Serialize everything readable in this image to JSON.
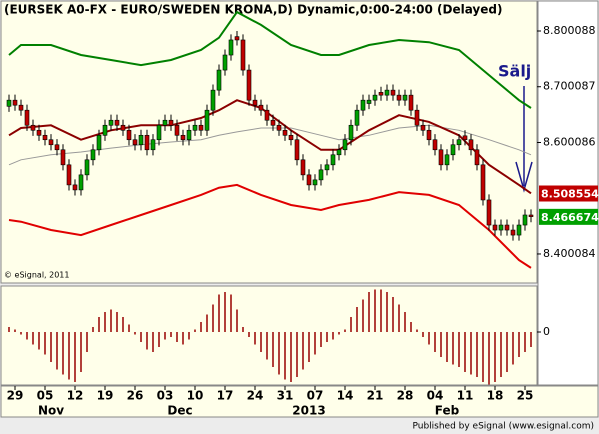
{
  "chart_data": {
    "type": "candlestick",
    "title": "(EURSEK A0-FX - EURO/SWEDEN KRONA,D) Dynamic,0:00-24:00 (Delayed)",
    "annotation": "Sälj",
    "copyright": "© eSignal, 2011",
    "footer": "Published by eSignal (www.esignal.com)",
    "ylim": [
      8.348,
      8.8557
    ],
    "yticks": [
      8.800088,
      8.700087,
      8.600086,
      8.400084
    ],
    "xlim": [
      -1.5,
      88
    ],
    "xticks": [
      {
        "value": 1,
        "label": "29"
      },
      {
        "value": 6,
        "label": "05"
      },
      {
        "value": 11,
        "label": "12"
      },
      {
        "value": 16,
        "label": "19"
      },
      {
        "value": 21,
        "label": "26"
      },
      {
        "value": 26,
        "label": "03"
      },
      {
        "value": 31,
        "label": "10"
      },
      {
        "value": 36,
        "label": "17"
      },
      {
        "value": 41,
        "label": "24"
      },
      {
        "value": 46,
        "label": "31"
      },
      {
        "value": 51,
        "label": "07"
      },
      {
        "value": 56,
        "label": "14"
      },
      {
        "value": 61,
        "label": "21"
      },
      {
        "value": 66,
        "label": "28"
      },
      {
        "value": 71,
        "label": "04"
      },
      {
        "value": 76,
        "label": "11"
      },
      {
        "value": 81,
        "label": "18"
      },
      {
        "value": 86,
        "label": "25"
      }
    ],
    "month_labels": [
      {
        "value": 7,
        "label": "Nov"
      },
      {
        "value": 28.5,
        "label": "Dec"
      },
      {
        "value": 50,
        "label": "2013"
      },
      {
        "value": 73,
        "label": "Feb"
      }
    ],
    "colors": {
      "up": "#00a000",
      "down": "#c00000"
    },
    "candles": {
      "open": [
        8.665,
        8.676,
        8.667,
        8.658,
        8.631,
        8.622,
        8.613,
        8.605,
        8.596,
        8.587,
        8.56,
        8.524,
        8.515,
        8.542,
        8.569,
        8.587,
        8.613,
        8.631,
        8.64,
        8.631,
        8.622,
        8.605,
        8.596,
        8.613,
        8.587,
        8.605,
        8.631,
        8.64,
        8.631,
        8.613,
        8.605,
        8.622,
        8.631,
        8.622,
        8.658,
        8.694,
        8.73,
        8.757,
        8.79,
        8.784,
        8.73,
        8.676,
        8.667,
        8.658,
        8.64,
        8.631,
        8.622,
        8.613,
        8.605,
        8.569,
        8.542,
        8.524,
        8.533,
        8.551,
        8.56,
        8.578,
        8.587,
        8.605,
        8.631,
        8.658,
        8.67,
        8.676,
        8.69,
        8.685,
        8.694,
        8.685,
        8.676,
        8.685,
        8.658,
        8.631,
        8.622,
        8.605,
        8.587,
        8.56,
        8.578,
        8.596,
        8.612,
        8.605,
        8.587,
        8.56,
        8.497,
        8.452,
        8.443,
        8.452,
        8.443,
        8.434,
        8.452,
        8.47
      ],
      "high": [
        8.686,
        8.686,
        8.677,
        8.668,
        8.641,
        8.632,
        8.623,
        8.615,
        8.606,
        8.597,
        8.57,
        8.534,
        8.552,
        8.579,
        8.597,
        8.623,
        8.641,
        8.65,
        8.65,
        8.641,
        8.632,
        8.615,
        8.623,
        8.623,
        8.615,
        8.641,
        8.65,
        8.65,
        8.641,
        8.623,
        8.632,
        8.641,
        8.641,
        8.668,
        8.704,
        8.74,
        8.767,
        8.794,
        8.8,
        8.794,
        8.74,
        8.686,
        8.677,
        8.668,
        8.65,
        8.641,
        8.632,
        8.623,
        8.615,
        8.579,
        8.552,
        8.543,
        8.561,
        8.57,
        8.588,
        8.597,
        8.615,
        8.641,
        8.668,
        8.686,
        8.686,
        8.695,
        8.7,
        8.704,
        8.704,
        8.695,
        8.695,
        8.695,
        8.668,
        8.641,
        8.632,
        8.615,
        8.597,
        8.588,
        8.606,
        8.615,
        8.622,
        8.615,
        8.597,
        8.57,
        8.507,
        8.462,
        8.462,
        8.462,
        8.453,
        8.462,
        8.48,
        8.48
      ],
      "low": [
        8.655,
        8.657,
        8.648,
        8.621,
        8.612,
        8.603,
        8.595,
        8.586,
        8.577,
        8.55,
        8.514,
        8.505,
        8.505,
        8.532,
        8.559,
        8.577,
        8.603,
        8.621,
        8.621,
        8.612,
        8.595,
        8.586,
        8.586,
        8.577,
        8.577,
        8.595,
        8.621,
        8.621,
        8.603,
        8.595,
        8.595,
        8.612,
        8.612,
        8.612,
        8.648,
        8.684,
        8.72,
        8.747,
        8.774,
        8.72,
        8.666,
        8.657,
        8.648,
        8.63,
        8.621,
        8.612,
        8.603,
        8.595,
        8.559,
        8.532,
        8.514,
        8.514,
        8.523,
        8.541,
        8.55,
        8.568,
        8.577,
        8.595,
        8.621,
        8.648,
        8.66,
        8.666,
        8.675,
        8.675,
        8.675,
        8.666,
        8.666,
        8.648,
        8.621,
        8.612,
        8.595,
        8.577,
        8.55,
        8.55,
        8.568,
        8.586,
        8.595,
        8.577,
        8.55,
        8.487,
        8.442,
        8.433,
        8.433,
        8.433,
        8.424,
        8.424,
        8.442,
        8.457
      ],
      "close": [
        8.676,
        8.667,
        8.658,
        8.631,
        8.622,
        8.613,
        8.605,
        8.596,
        8.587,
        8.56,
        8.524,
        8.515,
        8.542,
        8.569,
        8.587,
        8.613,
        8.631,
        8.64,
        8.631,
        8.622,
        8.605,
        8.596,
        8.613,
        8.587,
        8.605,
        8.631,
        8.64,
        8.631,
        8.613,
        8.605,
        8.622,
        8.631,
        8.622,
        8.658,
        8.694,
        8.73,
        8.757,
        8.784,
        8.784,
        8.73,
        8.676,
        8.667,
        8.658,
        8.64,
        8.631,
        8.622,
        8.613,
        8.605,
        8.569,
        8.542,
        8.524,
        8.533,
        8.551,
        8.56,
        8.578,
        8.587,
        8.605,
        8.631,
        8.658,
        8.676,
        8.676,
        8.685,
        8.685,
        8.694,
        8.685,
        8.676,
        8.685,
        8.658,
        8.631,
        8.622,
        8.605,
        8.587,
        8.56,
        8.578,
        8.596,
        8.605,
        8.605,
        8.587,
        8.56,
        8.497,
        8.452,
        8.443,
        8.452,
        8.443,
        8.434,
        8.452,
        8.47,
        8.467
      ]
    },
    "lines": [
      {
        "color": "#008000",
        "x": [
          0,
          2,
          7,
          12,
          17,
          22,
          27,
          32,
          35,
          38,
          42,
          47,
          52,
          55,
          60,
          65,
          70,
          75,
          80,
          85,
          87
        ],
        "values": [
          8.757,
          8.775,
          8.775,
          8.757,
          8.748,
          8.739,
          8.748,
          8.766,
          8.788,
          8.834,
          8.811,
          8.775,
          8.757,
          8.757,
          8.775,
          8.784,
          8.78,
          8.766,
          8.721,
          8.676,
          8.662
        ]
      },
      {
        "color": "#999999",
        "x": [
          0,
          2,
          7,
          12,
          17,
          22,
          27,
          32,
          35,
          38,
          42,
          47,
          52,
          55,
          60,
          65,
          70,
          75,
          80,
          85,
          87
        ],
        "values": [
          8.56,
          8.569,
          8.578,
          8.583,
          8.59,
          8.596,
          8.601,
          8.605,
          8.613,
          8.619,
          8.626,
          8.626,
          8.613,
          8.605,
          8.613,
          8.626,
          8.631,
          8.622,
          8.605,
          8.587,
          8.578
        ]
      },
      {
        "color": "#8b0000",
        "x": [
          0,
          2,
          7,
          12,
          17,
          22,
          27,
          32,
          35,
          38,
          42,
          47,
          52,
          55,
          60,
          65,
          70,
          75,
          80,
          85,
          87
        ],
        "values": [
          8.613,
          8.626,
          8.631,
          8.605,
          8.622,
          8.631,
          8.631,
          8.644,
          8.658,
          8.676,
          8.662,
          8.622,
          8.587,
          8.587,
          8.622,
          8.649,
          8.637,
          8.613,
          8.56,
          8.524,
          8.509
        ]
      },
      {
        "color": "#e00000",
        "x": [
          0,
          2,
          7,
          12,
          17,
          22,
          27,
          32,
          35,
          38,
          42,
          47,
          52,
          55,
          60,
          65,
          70,
          75,
          80,
          85,
          87
        ],
        "values": [
          8.461,
          8.458,
          8.443,
          8.434,
          8.452,
          8.47,
          8.488,
          8.506,
          8.519,
          8.524,
          8.506,
          8.488,
          8.479,
          8.488,
          8.497,
          8.511,
          8.506,
          8.488,
          8.443,
          8.389,
          8.375
        ]
      }
    ],
    "price_markers": [
      {
        "value": 8.508554,
        "color": "#c00000"
      },
      {
        "value": 8.466674,
        "color": "#00a000"
      }
    ],
    "oscillator": {
      "type": "bar",
      "color": "#990000",
      "ylim": [
        -1.06,
        0.94
      ],
      "yticks": [
        0
      ],
      "values": [
        0.1,
        0.05,
        -0.05,
        -0.15,
        -0.25,
        -0.35,
        -0.45,
        -0.6,
        -0.75,
        -0.85,
        -0.95,
        -1.0,
        -0.8,
        -0.4,
        0.1,
        0.3,
        0.4,
        0.45,
        0.4,
        0.3,
        0.15,
        -0.05,
        -0.2,
        -0.35,
        -0.4,
        -0.3,
        -0.15,
        -0.1,
        -0.2,
        -0.25,
        -0.15,
        0.05,
        0.2,
        0.35,
        0.55,
        0.75,
        0.8,
        0.75,
        0.45,
        0.1,
        -0.1,
        -0.25,
        -0.4,
        -0.55,
        -0.7,
        -0.85,
        -0.95,
        -1.0,
        -0.9,
        -0.75,
        -0.6,
        -0.45,
        -0.3,
        -0.2,
        -0.15,
        -0.05,
        0.05,
        0.3,
        0.5,
        0.65,
        0.8,
        0.85,
        0.85,
        0.8,
        0.7,
        0.55,
        0.4,
        0.2,
        0.05,
        -0.1,
        -0.25,
        -0.4,
        -0.5,
        -0.6,
        -0.65,
        -0.7,
        -0.8,
        -0.85,
        -0.9,
        -1.0,
        -1.05,
        -1.0,
        -0.9,
        -0.8,
        -0.65,
        -0.5,
        -0.4,
        -0.3
      ]
    }
  }
}
